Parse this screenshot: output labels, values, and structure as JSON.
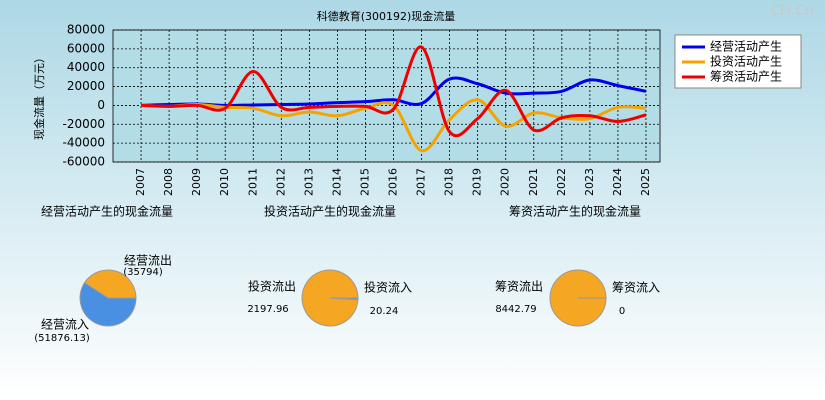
{
  "watermark": "CFi.Cn",
  "chart_data": [
    {
      "type": "line",
      "title": "科德教育(300192)现金流量",
      "y_label": "现金流量（万元）",
      "categories": [
        "2007",
        "2008",
        "2009",
        "2010",
        "2011",
        "2012",
        "2013",
        "2014",
        "2015",
        "2016",
        "2017",
        "2018",
        "2019",
        "2020",
        "2021",
        "2022",
        "2023",
        "2024",
        "2025"
      ],
      "ylim": [
        -60000,
        80000
      ],
      "yticks": [
        -60000,
        -40000,
        -20000,
        0,
        20000,
        40000,
        60000,
        80000
      ],
      "grid": true,
      "series": [
        {
          "name": "经营活动产生",
          "color": "#0000ee",
          "values": [
            0,
            1000,
            1500,
            0,
            500,
            1000,
            1500,
            3000,
            4000,
            6000,
            2000,
            28000,
            23000,
            13000,
            13000,
            15000,
            27000,
            21000,
            15000
          ]
        },
        {
          "name": "投资活动产生",
          "color": "#f5a300",
          "values": [
            0,
            -1000,
            1000,
            -2000,
            -3000,
            -11000,
            -7000,
            -11000,
            -3000,
            0,
            -48000,
            -15000,
            6000,
            -22000,
            -8000,
            -13000,
            -14000,
            -2000,
            -3000
          ]
        },
        {
          "name": "筹资活动产生",
          "color": "#ee0000",
          "values": [
            0,
            -1000,
            0,
            -3000,
            36000,
            -2000,
            -2000,
            -1000,
            -1000,
            -4000,
            62000,
            -28000,
            -14000,
            16000,
            -26000,
            -13000,
            -11000,
            -17000,
            -10000
          ]
        }
      ]
    },
    {
      "type": "pie",
      "title": "经营活动产生的现金流量",
      "categories": [
        "经营流出",
        "经营流入"
      ],
      "values": [
        35794,
        51876.13
      ],
      "value_labels": [
        "(35794)",
        "(51876.13)"
      ],
      "colors": [
        "#f5a623",
        "#4a90e2"
      ]
    },
    {
      "type": "pie",
      "title": "投资活动产生的现金流量",
      "categories": [
        "投资流出",
        "投资流入"
      ],
      "values": [
        2197.96,
        20.24
      ],
      "colors": [
        "#f5a623",
        "#4a90e2"
      ]
    },
    {
      "type": "pie",
      "title": "筹资活动产生的现金流量",
      "categories": [
        "筹资流出",
        "筹资流入"
      ],
      "values": [
        8442.79,
        0
      ],
      "colors": [
        "#f5a623",
        "#4a90e2"
      ]
    }
  ]
}
